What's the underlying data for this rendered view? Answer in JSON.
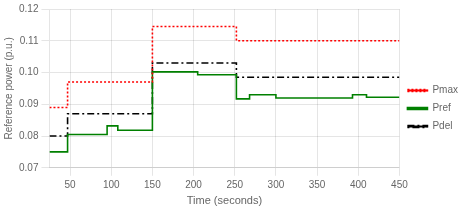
{
  "chart_data": {
    "type": "line",
    "xlabel": "Time (seconds)",
    "ylabel": "Reference power (p.u.)",
    "xlim": [
      25,
      450
    ],
    "ylim": [
      0.07,
      0.12
    ],
    "xticks": [
      50,
      100,
      150,
      200,
      250,
      300,
      350,
      400,
      450
    ],
    "yticks": [
      0.07,
      0.08,
      0.09,
      {
        "value": 0.1,
        "label": "0.10"
      },
      0.11,
      0.12
    ],
    "grid": true,
    "legend": "right",
    "series": [
      {
        "name": "Pmax",
        "color": "#ff0000",
        "line_style": "dotted",
        "x": [
          25,
          47,
          47,
          150,
          150,
          252,
          252,
          450
        ],
        "values": [
          0.089,
          0.089,
          0.097,
          0.097,
          0.1145,
          0.1145,
          0.11,
          0.11
        ]
      },
      {
        "name": "Pref",
        "color": "#008000",
        "line_style": "solid",
        "x": [
          25,
          47,
          47,
          95,
          95,
          108,
          108,
          150,
          150,
          205,
          205,
          252,
          252,
          268,
          268,
          300,
          300,
          393,
          393,
          410,
          410,
          450
        ],
        "values": [
          0.075,
          0.075,
          0.0805,
          0.0805,
          0.0832,
          0.0832,
          0.0818,
          0.0818,
          0.1002,
          0.1002,
          0.0993,
          0.0993,
          0.0917,
          0.0917,
          0.093,
          0.093,
          0.092,
          0.092,
          0.093,
          0.093,
          0.0922,
          0.0922
        ]
      },
      {
        "name": "Pdel",
        "color": "#000000",
        "line_style": "dashdot",
        "x": [
          25,
          47,
          47,
          150,
          150,
          252,
          252,
          450
        ],
        "values": [
          0.08,
          0.08,
          0.087,
          0.087,
          0.103,
          0.103,
          0.0985,
          0.0985
        ]
      }
    ]
  }
}
